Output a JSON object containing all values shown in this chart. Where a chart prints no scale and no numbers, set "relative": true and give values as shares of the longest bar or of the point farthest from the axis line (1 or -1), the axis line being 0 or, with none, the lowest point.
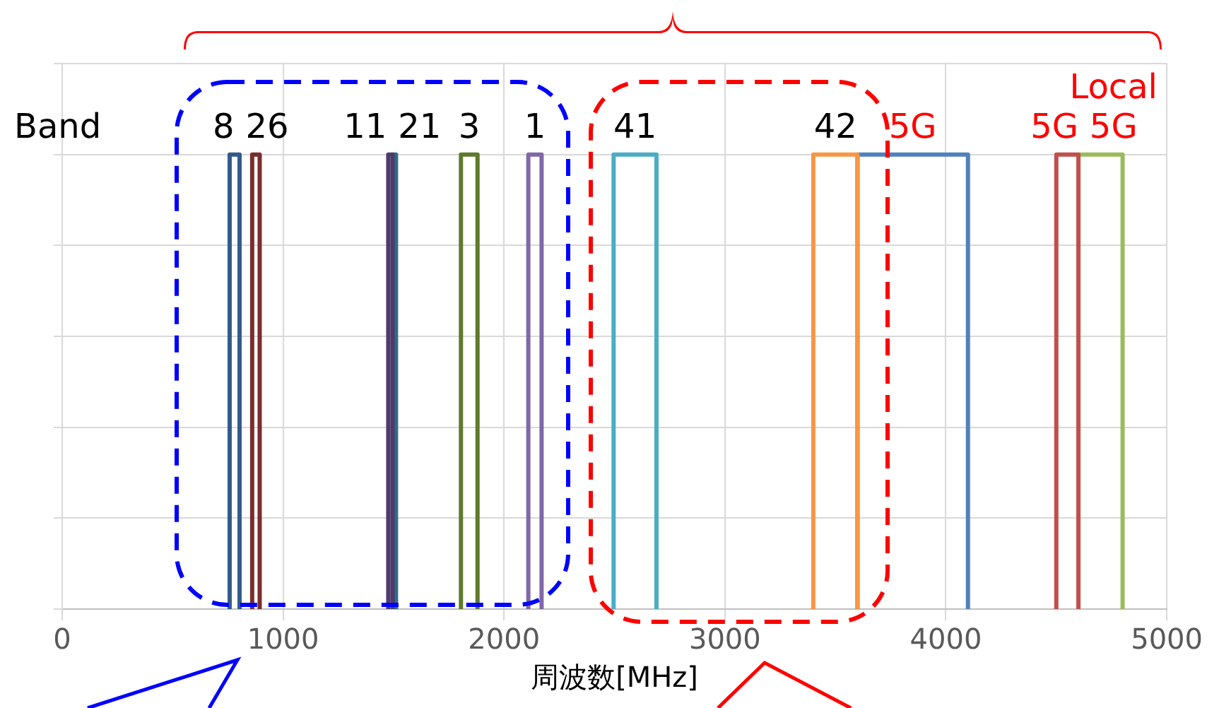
{
  "chart_data": {
    "type": "line",
    "relative": true,
    "xlabel": "周波数[MHz]",
    "xlim": [
      0,
      5000
    ],
    "xticks": [
      0,
      1000,
      2000,
      3000,
      4000,
      5000
    ],
    "grid": true,
    "legend": false,
    "marker": "none",
    "line_style": "solid",
    "annotations": [
      "Band",
      {
        "text": "5G",
        "x": 3850,
        "y": 1
      },
      {
        "text": "5G",
        "x": 4550,
        "y": 1
      },
      {
        "text": "Local 5G",
        "x": 4700,
        "y": 1
      }
    ],
    "series": [
      {
        "name": "8",
        "color": "#335b8a",
        "x": [
          758,
          758,
          803,
          803
        ],
        "values": [
          0,
          1,
          1,
          0
        ]
      },
      {
        "name": "26",
        "color": "#7a2e2e",
        "x": [
          860,
          860,
          894,
          894
        ],
        "values": [
          0,
          1,
          1,
          0
        ]
      },
      {
        "name": "11",
        "color": "#4f3b6b",
        "x": [
          1476,
          1476,
          1496,
          1496
        ],
        "values": [
          0,
          1,
          1,
          0
        ]
      },
      {
        "name": "21",
        "color": "#2a6f86",
        "x": [
          1496,
          1496,
          1511,
          1511
        ],
        "values": [
          0,
          1,
          1,
          0
        ]
      },
      {
        "name": "3",
        "color": "#5e7a2e",
        "x": [
          1805,
          1805,
          1880,
          1880
        ],
        "values": [
          0,
          1,
          1,
          0
        ]
      },
      {
        "name": "1",
        "color": "#8068a8",
        "x": [
          2110,
          2110,
          2170,
          2170
        ],
        "values": [
          0,
          1,
          1,
          0
        ]
      },
      {
        "name": "41",
        "color": "#4bacc6",
        "x": [
          2496,
          2496,
          2690,
          2690
        ],
        "values": [
          0,
          1,
          1,
          0
        ]
      },
      {
        "name": "42",
        "color": "#f79646",
        "x": [
          3400,
          3400,
          3600,
          3600
        ],
        "values": [
          0,
          1,
          1,
          0
        ]
      },
      {
        "color": "#4f81bd",
        "x": [
          3600,
          3600,
          4100,
          4100
        ],
        "values": [
          0,
          1,
          1,
          0
        ]
      },
      {
        "color": "#c0504d",
        "x": [
          4500,
          4500,
          4600,
          4600
        ],
        "values": [
          0,
          1,
          1,
          0
        ]
      },
      {
        "color": "#9bbb59",
        "x": [
          4600,
          4600,
          4800,
          4800
        ],
        "values": [
          0,
          1,
          1,
          0
        ]
      }
    ]
  }
}
